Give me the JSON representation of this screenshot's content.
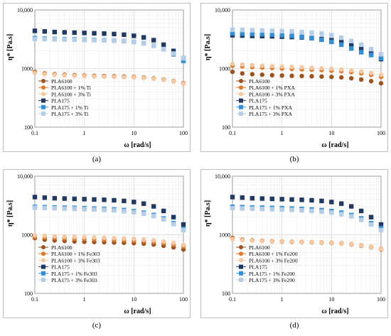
{
  "colors": {
    "PLA6100": "#a0521d",
    "PLA6100_1": "#e07a2a",
    "PLA6100_3": "#f7c7a0",
    "PLA175": "#203864",
    "PLA175_1": "#2f8fd8",
    "PLA175_3": "#b4cde8",
    "grid": "#d9d9d9",
    "frame": "#bdbdbd"
  },
  "chart_data": [
    {
      "type": "scatter",
      "panel": "(a)",
      "xlabel": "ω [rad/s]",
      "ylabel": "η* [Pa.s]",
      "log_x": true,
      "log_y": true,
      "xlim": [
        0.1,
        100
      ],
      "ylim": [
        100,
        10000
      ],
      "x_ticks": [
        "0.1",
        "1",
        "10",
        "100"
      ],
      "y_ticks": [
        "100",
        "1000",
        "10,000"
      ],
      "grid": true,
      "legend_position": "lower-left",
      "x": [
        0.1,
        0.158,
        0.251,
        0.398,
        0.631,
        1,
        1.58,
        2.51,
        3.98,
        6.31,
        10,
        15.8,
        25.1,
        39.8,
        63.1,
        100
      ],
      "series": [
        {
          "name": "PLA6100",
          "color_key": "PLA6100",
          "marker": "circle",
          "values": [
            880,
            825,
            800,
            785,
            770,
            760,
            752,
            745,
            738,
            730,
            720,
            705,
            682,
            650,
            610,
            560
          ]
        },
        {
          "name": "PLA6100 + 1% Ti",
          "color_key": "PLA6100_1",
          "marker": "circle",
          "values": [
            860,
            810,
            790,
            775,
            760,
            750,
            742,
            735,
            728,
            720,
            712,
            698,
            678,
            648,
            608,
            555
          ]
        },
        {
          "name": "PLA6100 + 3% Ti",
          "color_key": "PLA6100_3",
          "marker": "circle",
          "values": [
            840,
            800,
            780,
            765,
            752,
            742,
            735,
            728,
            722,
            715,
            706,
            692,
            672,
            642,
            602,
            548
          ]
        },
        {
          "name": "PLA175",
          "color_key": "PLA175",
          "marker": "square",
          "values": [
            4400,
            4300,
            4200,
            4150,
            4100,
            4050,
            4000,
            3950,
            3880,
            3780,
            3620,
            3400,
            3050,
            2550,
            2000,
            1500
          ]
        },
        {
          "name": "PLA175 + 1% Ti",
          "color_key": "PLA175_1",
          "marker": "square",
          "values": [
            3300,
            3250,
            3200,
            3180,
            3150,
            3120,
            3080,
            3050,
            3000,
            2940,
            2850,
            2700,
            2450,
            2150,
            1750,
            1350
          ]
        },
        {
          "name": "PLA175 + 3% Ti",
          "color_key": "PLA175_3",
          "marker": "square",
          "values": [
            3200,
            3180,
            3150,
            3130,
            3100,
            3080,
            3050,
            3020,
            2980,
            2920,
            2830,
            2680,
            2450,
            2150,
            1800,
            1500
          ]
        }
      ]
    },
    {
      "type": "scatter",
      "panel": "(b)",
      "xlabel": "ω [rad/s]",
      "ylabel": "η* [Pa.s]",
      "log_x": true,
      "log_y": true,
      "xlim": [
        0.1,
        100
      ],
      "ylim": [
        100,
        10000
      ],
      "x_ticks": [
        "0.1",
        "1",
        "10",
        "100"
      ],
      "y_ticks": [
        "100",
        "1000",
        "10,000"
      ],
      "grid": true,
      "legend_position": "lower-left",
      "x": [
        0.1,
        0.158,
        0.251,
        0.398,
        0.631,
        1,
        1.58,
        2.51,
        3.98,
        6.31,
        10,
        15.8,
        25.1,
        39.8,
        63.1,
        100
      ],
      "series": [
        {
          "name": "PLA6100",
          "color_key": "PLA6100",
          "marker": "circle",
          "values": [
            880,
            825,
            800,
            785,
            770,
            760,
            752,
            745,
            738,
            730,
            720,
            705,
            682,
            650,
            610,
            560
          ]
        },
        {
          "name": "PLA6100 + 1% PXA",
          "color_key": "PLA6100_1",
          "marker": "circle",
          "values": [
            1120,
            1090,
            1060,
            1040,
            1020,
            1000,
            985,
            970,
            955,
            940,
            920,
            900,
            870,
            830,
            780,
            720
          ]
        },
        {
          "name": "PLA6100 + 3% PXA",
          "color_key": "PLA6100_3",
          "marker": "circle",
          "values": [
            1200,
            1170,
            1140,
            1120,
            1100,
            1080,
            1065,
            1050,
            1030,
            1010,
            990,
            960,
            930,
            890,
            840,
            780
          ]
        },
        {
          "name": "PLA175",
          "color_key": "PLA175",
          "marker": "square",
          "values": [
            3700,
            3650,
            3600,
            3580,
            3550,
            3500,
            3450,
            3400,
            3320,
            3200,
            3050,
            2850,
            2550,
            2200,
            1800,
            1450
          ]
        },
        {
          "name": "PLA175 + 1% PXA",
          "color_key": "PLA175_1",
          "marker": "square",
          "values": [
            4000,
            3950,
            3900,
            3850,
            3800,
            3700,
            3600,
            3480,
            3300,
            3100,
            2850,
            2550,
            2200,
            1900,
            1700,
            1500
          ]
        },
        {
          "name": "PLA175 + 3% PXA",
          "color_key": "PLA175_3",
          "marker": "square",
          "values": [
            4600,
            4550,
            4500,
            4450,
            4400,
            4350,
            4300,
            4200,
            4100,
            3950,
            3700,
            3350,
            2950,
            2550,
            2150,
            1750
          ]
        }
      ]
    },
    {
      "type": "scatter",
      "panel": "(c)",
      "xlabel": "ω [rad/s]",
      "ylabel": "η* [Pa.s]",
      "log_x": true,
      "log_y": true,
      "xlim": [
        0.1,
        100
      ],
      "ylim": [
        100,
        10000
      ],
      "x_ticks": [
        "0.1",
        "1",
        "10",
        "100"
      ],
      "y_ticks": [
        "100",
        "1000",
        "10,000"
      ],
      "grid": true,
      "legend_position": "lower-left",
      "x": [
        0.1,
        0.158,
        0.251,
        0.398,
        0.631,
        1,
        1.58,
        2.51,
        3.98,
        6.31,
        10,
        15.8,
        25.1,
        39.8,
        63.1,
        100
      ],
      "series": [
        {
          "name": "PLA6100",
          "color_key": "PLA6100",
          "marker": "circle",
          "values": [
            880,
            825,
            800,
            785,
            770,
            760,
            752,
            745,
            738,
            730,
            720,
            705,
            682,
            650,
            610,
            560
          ]
        },
        {
          "name": "PLA6100 + 1% Fe303",
          "color_key": "PLA6100_1",
          "marker": "circle",
          "values": [
            920,
            900,
            885,
            870,
            860,
            850,
            840,
            830,
            820,
            810,
            795,
            780,
            755,
            720,
            680,
            630
          ]
        },
        {
          "name": "PLA6100 + 3% Fe303",
          "color_key": "PLA6100_3",
          "marker": "circle",
          "values": [
            980,
            960,
            945,
            930,
            920,
            910,
            900,
            890,
            878,
            865,
            850,
            830,
            805,
            770,
            725,
            670
          ]
        },
        {
          "name": "PLA175",
          "color_key": "PLA175",
          "marker": "square",
          "values": [
            4400,
            4300,
            4200,
            4150,
            4100,
            4050,
            4000,
            3950,
            3880,
            3780,
            3620,
            3400,
            3050,
            2550,
            2000,
            1500
          ]
        },
        {
          "name": "PLA175 + 1% Fe303",
          "color_key": "PLA175_1",
          "marker": "square",
          "values": [
            3000,
            2960,
            2920,
            2900,
            2870,
            2840,
            2800,
            2760,
            2700,
            2630,
            2530,
            2380,
            2170,
            1900,
            1580,
            1250
          ]
        },
        {
          "name": "PLA175 + 3% Fe303",
          "color_key": "PLA175_3",
          "marker": "square",
          "values": [
            2900,
            2860,
            2830,
            2800,
            2770,
            2740,
            2700,
            2660,
            2600,
            2530,
            2430,
            2290,
            2090,
            1830,
            1520,
            1200
          ]
        }
      ]
    },
    {
      "type": "scatter",
      "panel": "(d)",
      "xlabel": "ω [rad/s]",
      "ylabel": "η* [Pa.s]",
      "log_x": true,
      "log_y": true,
      "xlim": [
        0.1,
        100
      ],
      "ylim": [
        100,
        10000
      ],
      "x_ticks": [
        "0.1",
        "1",
        "10",
        "100"
      ],
      "y_ticks": [
        "100",
        "1000",
        "10,000"
      ],
      "grid": true,
      "legend_position": "lower-left",
      "x": [
        0.1,
        0.158,
        0.251,
        0.398,
        0.631,
        1,
        1.58,
        2.51,
        3.98,
        6.31,
        10,
        15.8,
        25.1,
        39.8,
        63.1,
        100
      ],
      "series": [
        {
          "name": "PLA6100",
          "color_key": "PLA6100",
          "marker": "circle",
          "values": [
            880,
            825,
            800,
            785,
            770,
            760,
            752,
            745,
            738,
            730,
            720,
            705,
            682,
            650,
            610,
            560
          ]
        },
        {
          "name": "PLA6100 + 1% Fe200",
          "color_key": "PLA6100_1",
          "marker": "circle",
          "values": [
            860,
            820,
            800,
            790,
            780,
            770,
            762,
            755,
            748,
            740,
            730,
            716,
            695,
            662,
            622,
            575
          ]
        },
        {
          "name": "PLA6100 + 3% Fe200",
          "color_key": "PLA6100_3",
          "marker": "circle",
          "values": [
            840,
            805,
            790,
            780,
            770,
            762,
            755,
            748,
            740,
            732,
            722,
            708,
            688,
            656,
            615,
            568
          ]
        },
        {
          "name": "PLA175",
          "color_key": "PLA175",
          "marker": "square",
          "values": [
            4400,
            4300,
            4200,
            4150,
            4100,
            4050,
            4000,
            3950,
            3880,
            3780,
            3620,
            3400,
            3050,
            2550,
            2000,
            1500
          ]
        },
        {
          "name": "PLA175 + 1% Fe200",
          "color_key": "PLA175_1",
          "marker": "square",
          "values": [
            3000,
            2960,
            2920,
            2900,
            2870,
            2840,
            2800,
            2760,
            2700,
            2630,
            2530,
            2380,
            2170,
            1900,
            1580,
            1300
          ]
        },
        {
          "name": "PLA175 + 3% Fe200",
          "color_key": "PLA175_3",
          "marker": "square",
          "values": [
            2850,
            2820,
            2790,
            2760,
            2730,
            2700,
            2660,
            2620,
            2560,
            2490,
            2390,
            2250,
            2060,
            1800,
            1500,
            1200
          ]
        }
      ]
    }
  ]
}
